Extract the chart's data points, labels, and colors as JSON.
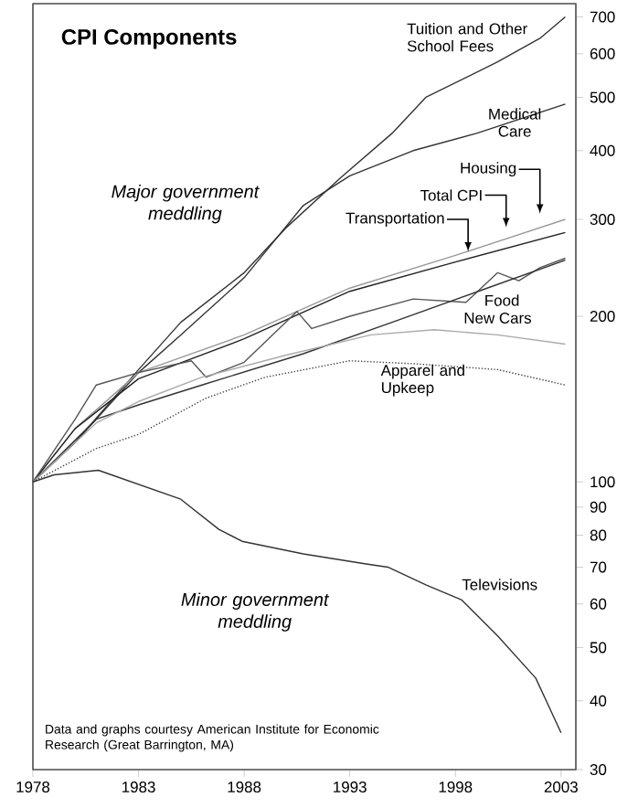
{
  "chart_data": {
    "type": "line",
    "title": "CPI Components",
    "log": true,
    "marker": "none",
    "xlim": [
      1978,
      2003.7
    ],
    "xticks": [
      1978,
      1983,
      1988,
      1993,
      1998,
      2003
    ],
    "ylim": [
      30,
      740
    ],
    "yticks": [
      30,
      40,
      50,
      60,
      70,
      80,
      90,
      100,
      200,
      300,
      400,
      500,
      600,
      700
    ],
    "series": [
      {
        "name": "Tuition and Other School Fees",
        "color": "#333333",
        "x": [
          1978,
          1980,
          1983,
          1985,
          1988,
          1990,
          1992.6,
          1995,
          1996.6,
          2000,
          2002,
          2003.2
        ],
        "values": [
          100,
          118,
          160,
          195,
          240,
          290,
          358,
          430,
          500,
          580,
          640,
          700
        ]
      },
      {
        "name": "Medical Care",
        "color": "#333333",
        "x": [
          1978,
          1980,
          1983,
          1985,
          1988,
          1990.8,
          1993,
          1996,
          1999,
          2003.2
        ],
        "values": [
          100,
          118,
          158,
          185,
          235,
          318,
          360,
          400,
          430,
          486
        ]
      },
      {
        "name": "Housing",
        "color": "#999999",
        "x": [
          1978,
          1980,
          1983,
          1988,
          1993,
          1998,
          2003.2
        ],
        "values": [
          100,
          125,
          158,
          185,
          225,
          258,
          300
        ]
      },
      {
        "name": "Total CPI",
        "color": "#222222",
        "x": [
          1978,
          1980,
          1983,
          1988,
          1993,
          1998,
          2003.2
        ],
        "values": [
          100,
          125,
          154,
          182,
          222,
          251,
          284
        ]
      },
      {
        "name": "Transportation",
        "color": "#555555",
        "x": [
          1978,
          1980,
          1981,
          1983,
          1985.5,
          1986.2,
          1988,
          1990.5,
          1991.2,
          1993,
          1996,
          1998.5,
          2000,
          2001,
          2002,
          2003.2
        ],
        "values": [
          100,
          130,
          150,
          158,
          166,
          155,
          165,
          204,
          190,
          200,
          215,
          212,
          240,
          232,
          245,
          255
        ]
      },
      {
        "name": "Food",
        "color": "#333333",
        "x": [
          1978,
          1981,
          1983,
          1986,
          1990.8,
          1995,
          1999.5,
          2003.2
        ],
        "values": [
          100,
          130,
          138,
          150,
          171,
          195,
          225,
          253
        ]
      },
      {
        "name": "New Cars",
        "color": "#aaaaaa",
        "x": [
          1978,
          1981,
          1983,
          1986,
          1990,
          1994,
          1997,
          2000,
          2003.2
        ],
        "values": [
          100,
          128,
          140,
          155,
          170,
          185,
          189,
          185,
          178
        ]
      },
      {
        "name": "Apparel and Upkeep",
        "color": "#444444",
        "line_style": "dotted",
        "x": [
          1978,
          1981,
          1983,
          1986.2,
          1989,
          1993,
          1996,
          2000,
          2003.2
        ],
        "values": [
          100,
          115,
          122,
          142,
          155,
          166,
          164,
          160,
          150
        ]
      },
      {
        "name": "Televisions",
        "color": "#333333",
        "x": [
          1978,
          1979,
          1981.1,
          1985,
          1986.8,
          1987.9,
          1990.8,
          1993.7,
          1994.8,
          1996.6,
          1998.3,
          2000,
          2001.8,
          2003
        ],
        "values": [
          100,
          103,
          105,
          93,
          82,
          78,
          74,
          71,
          70,
          65,
          61,
          52.5,
          44,
          35
        ]
      }
    ],
    "annotations": [
      "Major government meddling",
      "Minor government meddling",
      "Data and graphs courtesy American Institute for Economic Research (Great Barrington, MA)"
    ]
  }
}
